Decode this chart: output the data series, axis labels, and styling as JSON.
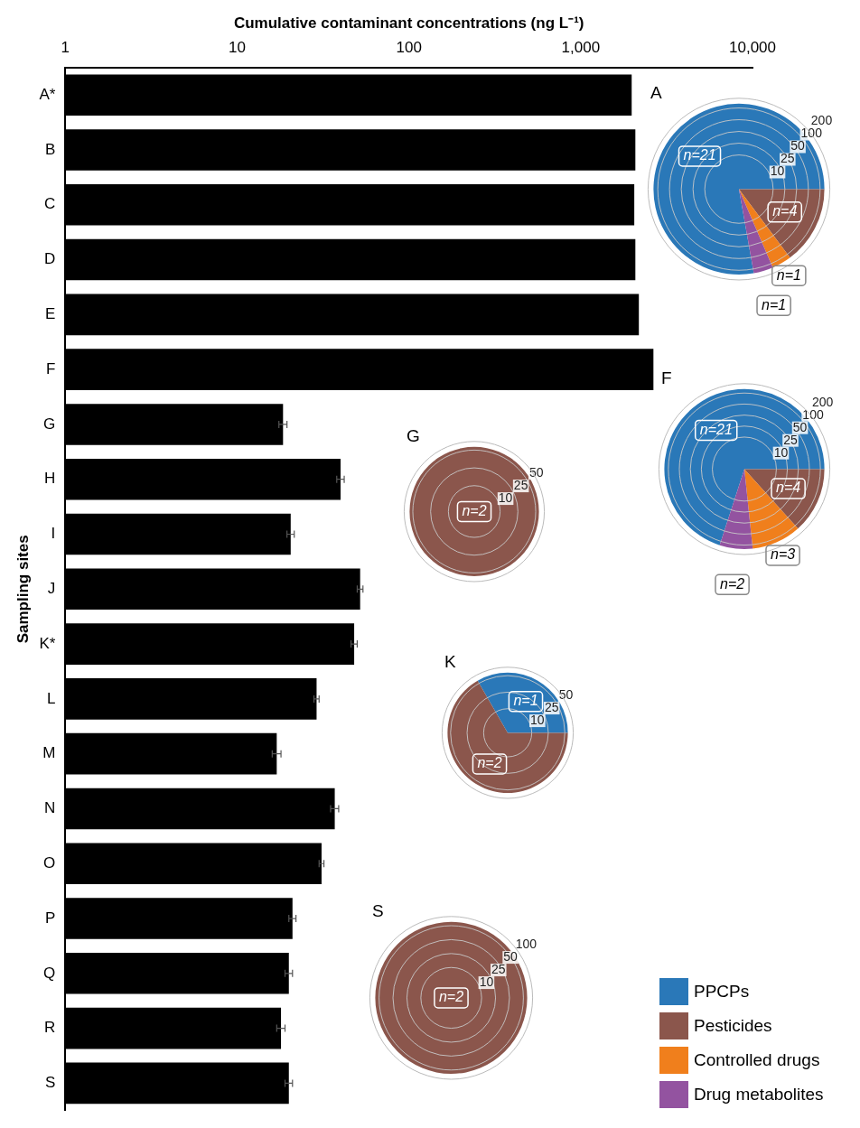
{
  "chart_data": [
    {
      "type": "bar",
      "orientation": "horizontal",
      "xlabel": "Cumulative contaminant concentrations (ng L⁻¹)",
      "ylabel": "Sampling sites",
      "categories": [
        "A*",
        "B",
        "C",
        "D",
        "E",
        "F",
        "G",
        "H",
        "I",
        "J",
        "K*",
        "L",
        "M",
        "N",
        "O",
        "P",
        "Q",
        "R",
        "S"
      ],
      "values": [
        1980,
        2080,
        2050,
        2080,
        2180,
        2650,
        18.5,
        40,
        20.5,
        52,
        48,
        29,
        17,
        37,
        31,
        21,
        20,
        18,
        20
      ],
      "errors": [
        null,
        null,
        null,
        null,
        null,
        null,
        1,
        2,
        1,
        2,
        2,
        1,
        1,
        2,
        1,
        1,
        1,
        1,
        1
      ],
      "color": "#000000",
      "log": "x",
      "xlim": [
        1,
        10000
      ],
      "xticks": [
        1,
        10,
        100,
        {
          "value": 1000,
          "label": "1,000"
        },
        {
          "value": 10000,
          "label": "10,000"
        }
      ],
      "grid": false
    },
    {
      "type": "pie",
      "title": "A",
      "categories": [
        "PPCPs",
        "Pesticides",
        "Controlled drugs",
        "Drug metabolites"
      ],
      "values": [
        21,
        4,
        1,
        1
      ],
      "colors": [
        "#2a78b8",
        "#8b564c",
        "#f07f1c",
        "#9353a0"
      ],
      "value_labels": [
        "n=21",
        "n=4",
        "n=1",
        "n=1"
      ],
      "annotations": [
        "10",
        "25",
        "50",
        "100",
        "200"
      ],
      "legend": "bottom right"
    },
    {
      "type": "pie",
      "title": "F",
      "values": [
        21,
        4,
        3,
        2
      ],
      "colors": [
        "#2a78b8",
        "#8b564c",
        "#f07f1c",
        "#9353a0"
      ],
      "value_labels": [
        "n=21",
        "n=4",
        "n=3",
        "n=2"
      ],
      "annotations": [
        "10",
        "25",
        "50",
        "100",
        "200"
      ]
    },
    {
      "type": "pie",
      "title": "G",
      "values": [
        0,
        2,
        0,
        0
      ],
      "colors": [
        "#2a78b8",
        "#8b564c",
        "#f07f1c",
        "#9353a0"
      ],
      "value_labels": [
        null,
        "n=2",
        null,
        null
      ],
      "annotations": [
        "10",
        "25",
        "50"
      ]
    },
    {
      "type": "pie",
      "title": "K",
      "values": [
        1,
        2,
        0,
        0
      ],
      "colors": [
        "#2a78b8",
        "#8b564c",
        "#f07f1c",
        "#9353a0"
      ],
      "value_labels": [
        "n=1",
        "n=2",
        null,
        null
      ],
      "annotations": [
        "10",
        "25",
        "50"
      ]
    },
    {
      "type": "pie",
      "title": "S",
      "values": [
        0,
        2,
        0,
        0
      ],
      "colors": [
        "#2a78b8",
        "#8b564c",
        "#f07f1c",
        "#9353a0"
      ],
      "value_labels": [
        null,
        "n=2",
        null,
        null
      ],
      "annotations": [
        "10",
        "25",
        "50",
        "100"
      ]
    }
  ]
}
